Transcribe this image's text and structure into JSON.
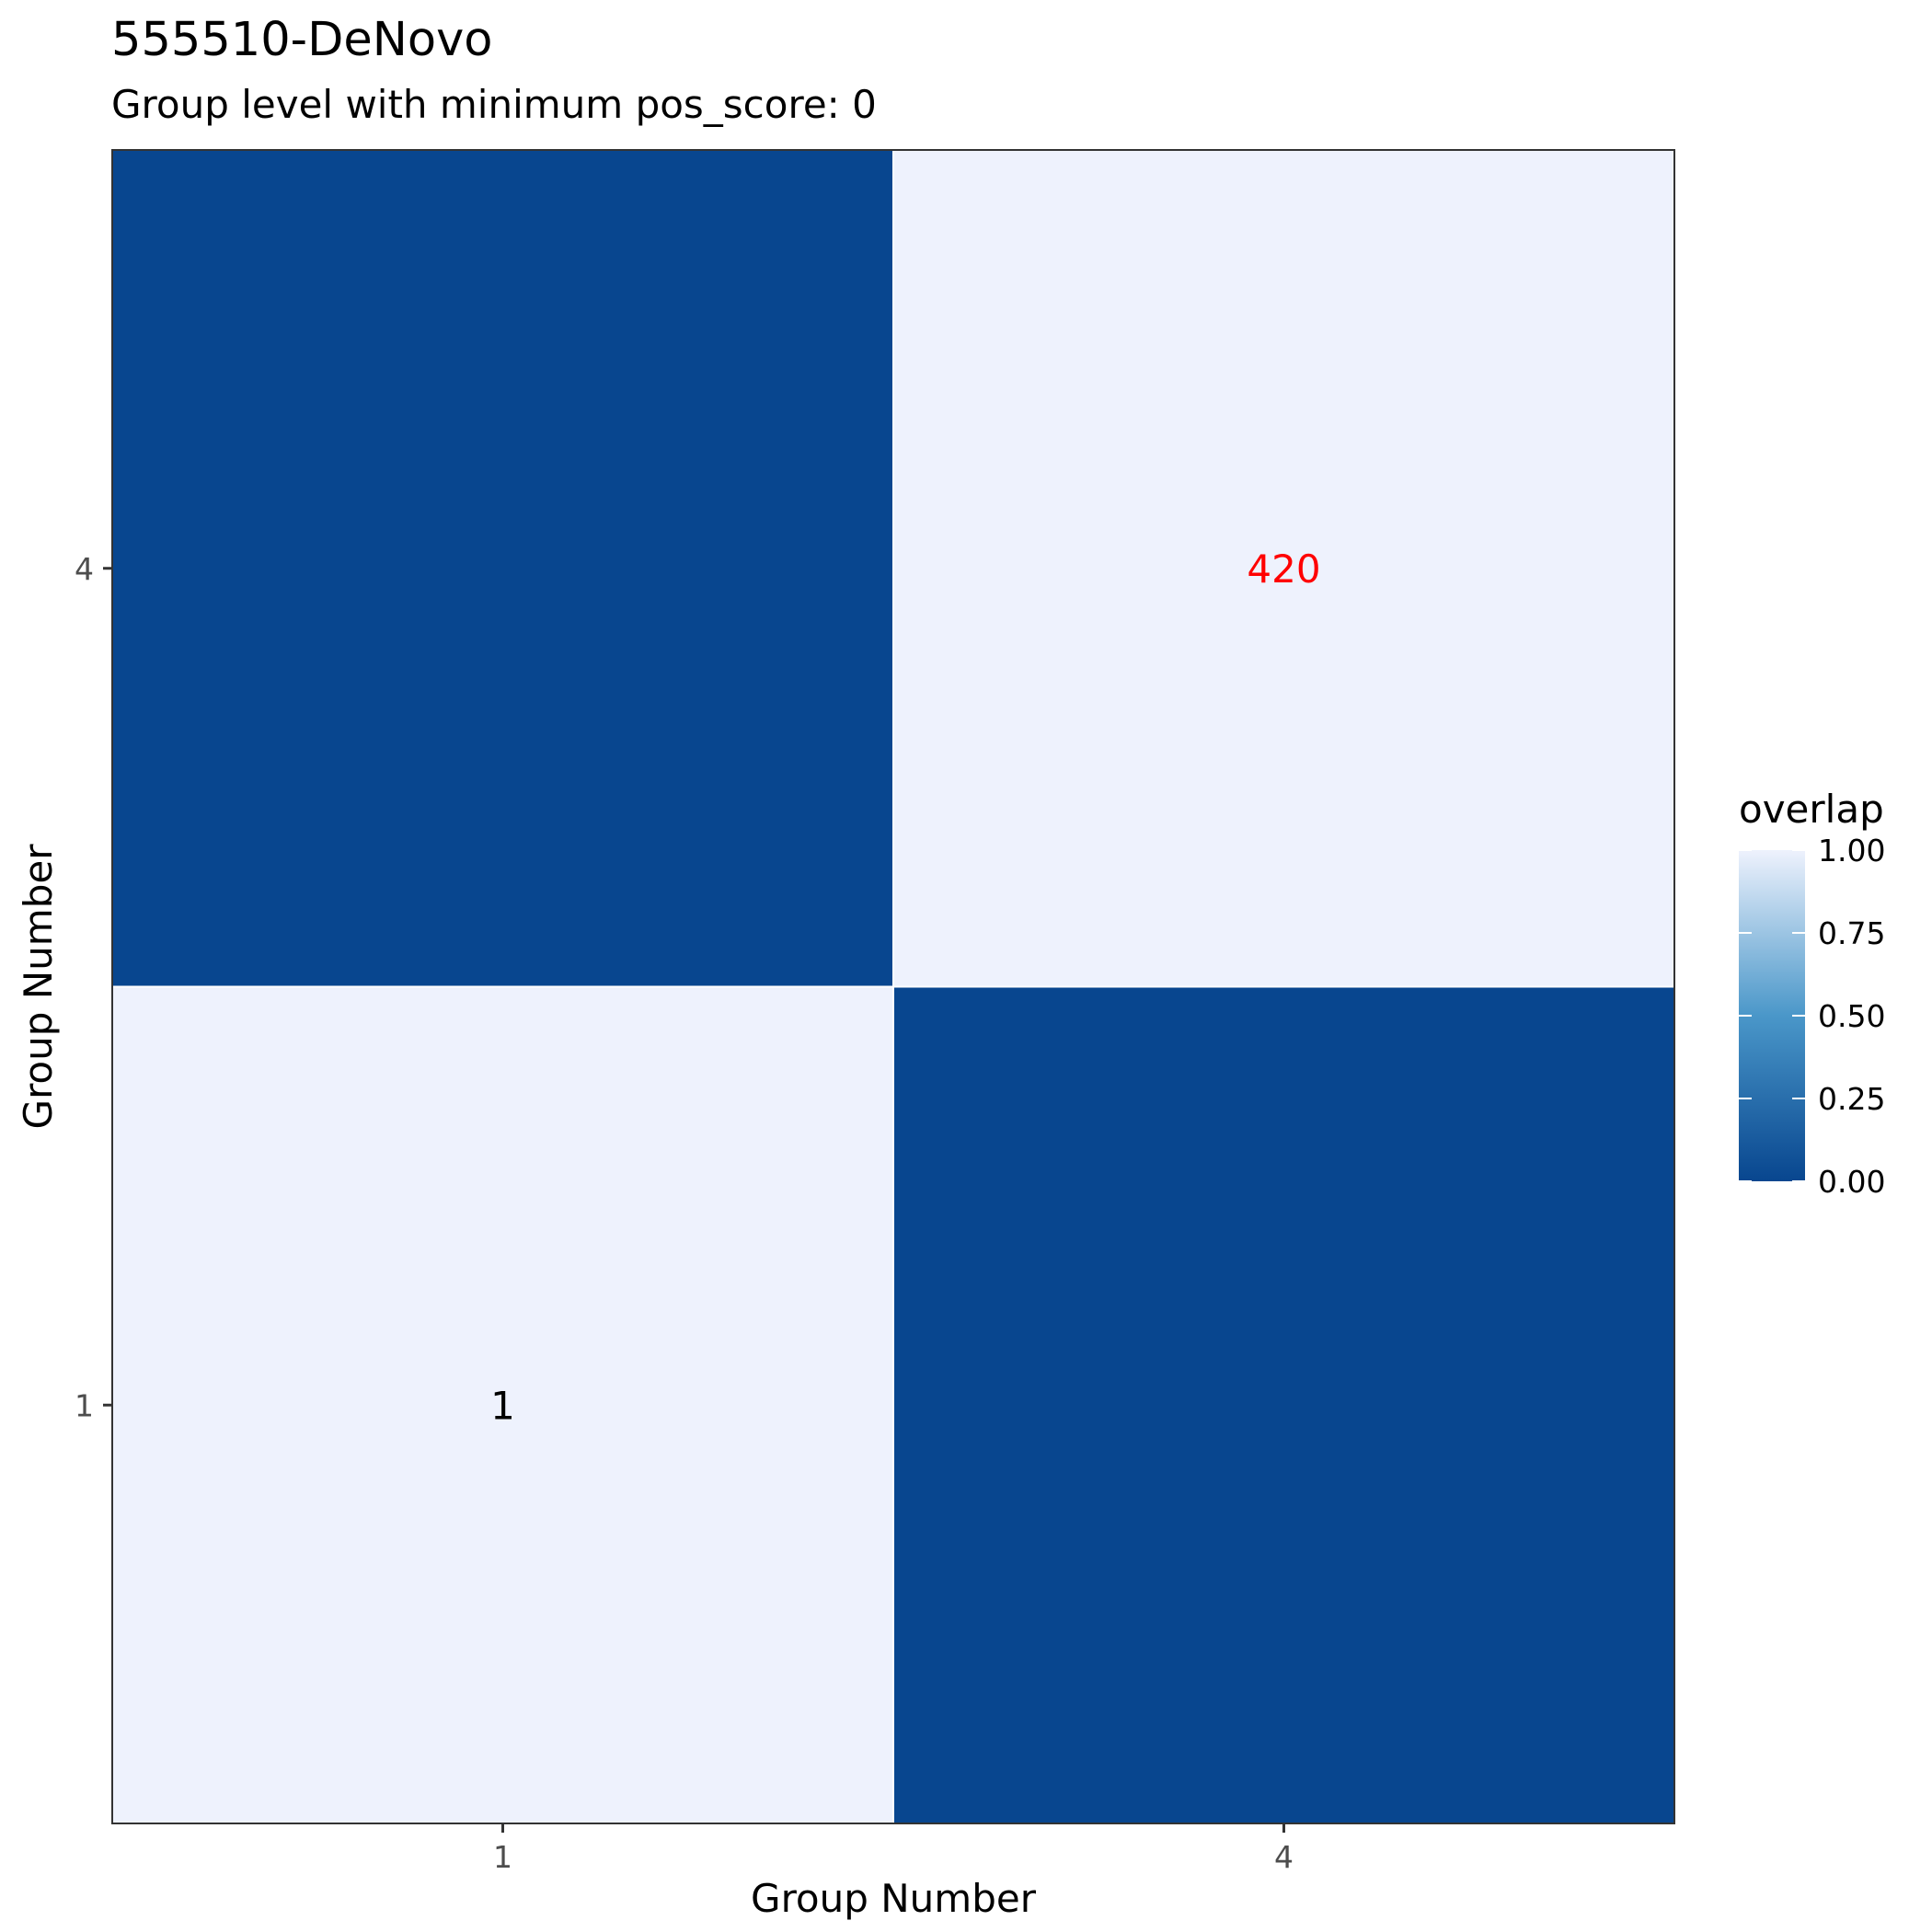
{
  "chart_data": {
    "type": "heatmap",
    "title": "555510-DeNovo",
    "subtitle": "Group level with minimum pos_score: 0",
    "xlabel": "Group Number",
    "ylabel": "Group Number",
    "x_categories": [
      "1",
      "4"
    ],
    "y_categories": [
      "1",
      "4"
    ],
    "cells": [
      {
        "x": "1",
        "y": "1",
        "overlap": 1.0,
        "label": "1",
        "label_color": "#000000"
      },
      {
        "x": "4",
        "y": "1",
        "overlap": 0.0,
        "label": "",
        "label_color": "#000000"
      },
      {
        "x": "1",
        "y": "4",
        "overlap": 0.0,
        "label": "",
        "label_color": "#000000"
      },
      {
        "x": "4",
        "y": "4",
        "overlap": 1.0,
        "label": "420",
        "label_color": "#ff0000"
      }
    ],
    "legend": {
      "title": "overlap",
      "ticks": [
        "0.00",
        "0.25",
        "0.50",
        "0.75",
        "1.00"
      ],
      "tick_values": [
        0,
        0.25,
        0.5,
        0.75,
        1.0
      ],
      "range": [
        0,
        1
      ],
      "low_color": "#08468f",
      "mid_color": "#4a97c9",
      "high_color": "#eef2fd",
      "placement": "right"
    },
    "grid": false
  }
}
